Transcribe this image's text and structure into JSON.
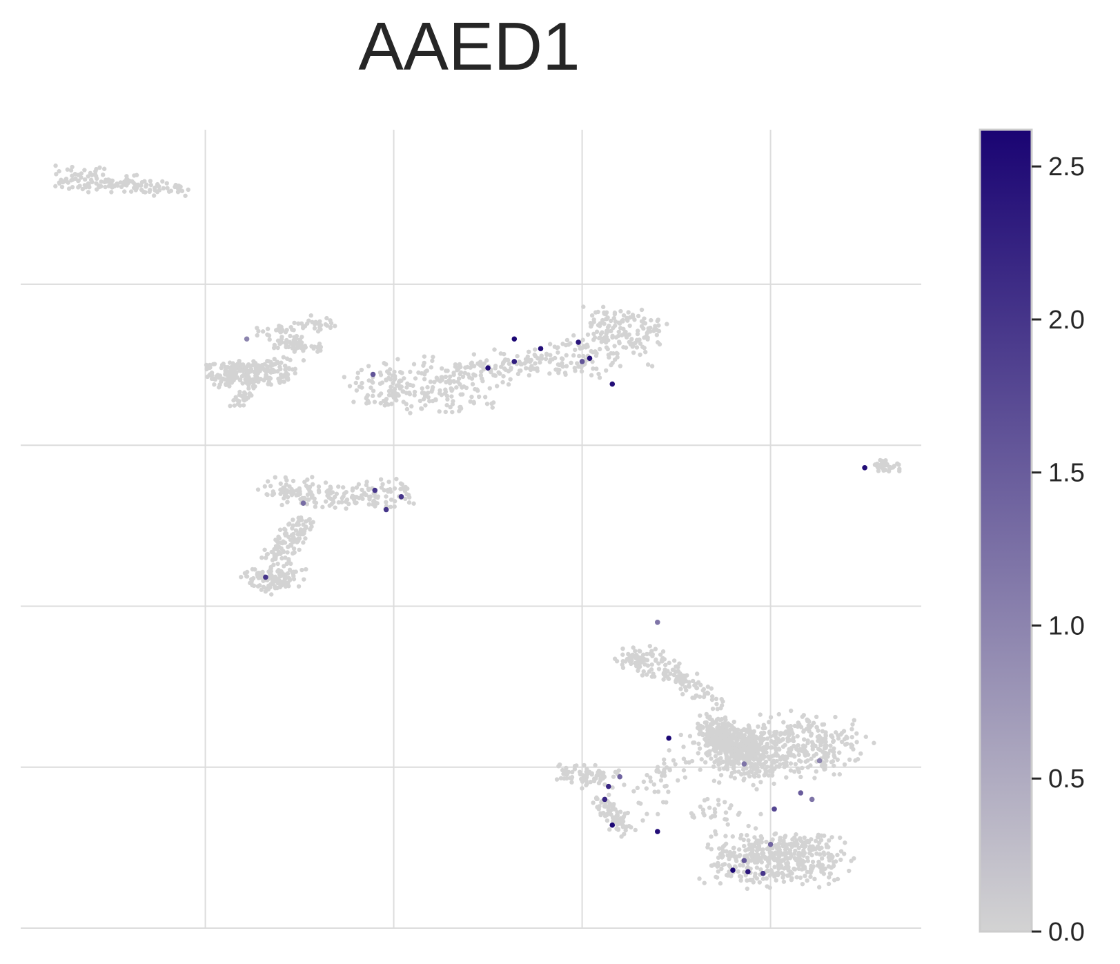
{
  "chart_data": {
    "type": "scatter",
    "title": "AAED1",
    "xlabel": "",
    "ylabel": "",
    "grid": true,
    "xlim": [
      -4.9,
      19.0
    ],
    "ylim": [
      -11.0,
      13.8
    ],
    "xgrid": [
      0,
      5,
      10,
      15
    ],
    "ygrid": [
      -11,
      -6,
      -1,
      4,
      9
    ],
    "colorbar": {
      "min": 0,
      "max": 2.62,
      "ticks": [
        "0.0",
        "0.5",
        "1.0",
        "1.5",
        "2.0",
        "2.5"
      ],
      "tick_values": [
        0,
        0.5,
        1.0,
        1.5,
        2.0,
        2.5
      ],
      "color_low": "#d3d3d3",
      "color_high": "#1a0473"
    },
    "point_color_zero": "#d3d3d3",
    "clusters": [
      {
        "name": "c1",
        "n": 140,
        "segments": [
          [
            -3.8,
            12.3,
            -2.3,
            12.2,
            0.45
          ],
          [
            -2.3,
            12.2,
            -0.6,
            11.9,
            0.3
          ]
        ],
        "spread": 0.12
      },
      {
        "name": "c2",
        "n": 110,
        "segments": [
          [
            1.5,
            7.5,
            3.3,
            7.8,
            0.3
          ],
          [
            2.0,
            7.2,
            3.0,
            7.0,
            0.25
          ]
        ],
        "spread": 0.15
      },
      {
        "name": "c3",
        "n": 30,
        "segments": [
          [
            0.8,
            5.3,
            1.2,
            5.7,
            0.2
          ]
        ],
        "spread": 0.1
      },
      {
        "name": "c4",
        "n": 220,
        "segments": [
          [
            0.2,
            6.2,
            2.2,
            6.3,
            0.45
          ]
        ],
        "spread": 0.18
      },
      {
        "name": "c5",
        "n": 480,
        "segments": [
          [
            4.2,
            5.8,
            6.4,
            6.1,
            0.8
          ],
          [
            6.4,
            6.1,
            9.2,
            6.7,
            0.45
          ],
          [
            9.2,
            6.7,
            11.4,
            7.0,
            0.9
          ],
          [
            10.3,
            7.8,
            11.7,
            7.5,
            0.7
          ]
        ],
        "spread": 0.35
      },
      {
        "name": "c6",
        "n": 60,
        "segments": [
          [
            5.0,
            5.3,
            7.8,
            5.6,
            0.55
          ]
        ],
        "spread": 0.25
      },
      {
        "name": "c7",
        "n": 35,
        "segments": [
          [
            17.8,
            3.4,
            18.3,
            3.3,
            0.18
          ]
        ],
        "spread": 0.1
      },
      {
        "name": "c8",
        "n": 420,
        "segments": [
          [
            1.8,
            2.5,
            3.2,
            2.4,
            0.45
          ],
          [
            3.2,
            2.4,
            5.3,
            2.5,
            0.55
          ],
          [
            2.6,
            1.6,
            1.9,
            0.4,
            0.4
          ],
          [
            1.3,
            -0.2,
            2.3,
            -0.1,
            0.35
          ]
        ],
        "spread": 0.22
      },
      {
        "name": "c9",
        "n": 160,
        "segments": [
          [
            11.2,
            -2.5,
            12.2,
            -2.9,
            0.45
          ],
          [
            12.2,
            -2.9,
            13.5,
            -4.0,
            0.35
          ]
        ],
        "spread": 0.25
      },
      {
        "name": "c10",
        "n": 900,
        "segments": [
          [
            13.8,
            -5.6,
            16.8,
            -5.2,
            1.0
          ],
          [
            13.4,
            -4.8,
            14.5,
            -5.7,
            0.35
          ]
        ],
        "spread": 0.55
      },
      {
        "name": "c11",
        "n": 420,
        "segments": [
          [
            14.0,
            -8.9,
            16.4,
            -8.8,
            0.85
          ]
        ],
        "spread": 0.45
      },
      {
        "name": "c12",
        "n": 160,
        "segments": [
          [
            9.5,
            -6.2,
            10.8,
            -6.3,
            0.35
          ],
          [
            10.5,
            -7.0,
            11.2,
            -8.0,
            0.25
          ]
        ],
        "spread": 0.2
      },
      {
        "name": "c13",
        "n": 80,
        "segments": [
          [
            13.2,
            -7.2,
            14.2,
            -8.0,
            0.6
          ],
          [
            11.5,
            -7.4,
            12.5,
            -5.8,
            0.5
          ]
        ],
        "spread": 0.3
      }
    ],
    "expressing_points": [
      [
        4.45,
        6.2,
        1.6
      ],
      [
        7.5,
        6.4,
        2.5
      ],
      [
        8.2,
        6.6,
        2.3
      ],
      [
        8.9,
        7.0,
        2.5
      ],
      [
        9.9,
        7.2,
        2.4
      ],
      [
        10.2,
        6.7,
        2.5
      ],
      [
        10.8,
        5.9,
        2.5
      ],
      [
        10.0,
        6.6,
        1.6
      ],
      [
        8.2,
        7.3,
        2.6
      ],
      [
        1.1,
        7.3,
        1.0
      ],
      [
        2.6,
        2.2,
        1.3
      ],
      [
        5.2,
        2.4,
        2.0
      ],
      [
        4.5,
        2.6,
        2.0
      ],
      [
        4.8,
        2.0,
        2.0
      ],
      [
        1.6,
        -0.1,
        2.0
      ],
      [
        17.5,
        3.3,
        2.5
      ],
      [
        12.3,
        -5.1,
        2.6
      ],
      [
        10.7,
        -6.6,
        2.2
      ],
      [
        10.6,
        -7.0,
        2.2
      ],
      [
        10.8,
        -7.8,
        2.6
      ],
      [
        12.0,
        -8.0,
        2.5
      ],
      [
        14.0,
        -9.2,
        2.6
      ],
      [
        14.4,
        -9.25,
        2.4
      ],
      [
        14.8,
        -9.3,
        2.0
      ],
      [
        15.1,
        -7.3,
        1.8
      ],
      [
        14.3,
        -8.9,
        1.6
      ],
      [
        11.0,
        -6.3,
        1.4
      ],
      [
        15.8,
        -6.8,
        1.5
      ],
      [
        16.1,
        -7.0,
        1.2
      ],
      [
        12.0,
        -1.5,
        1.2
      ],
      [
        15.0,
        -8.4,
        1.4
      ],
      [
        14.3,
        -5.9,
        1.2
      ],
      [
        16.3,
        -5.8,
        1.0
      ]
    ]
  }
}
